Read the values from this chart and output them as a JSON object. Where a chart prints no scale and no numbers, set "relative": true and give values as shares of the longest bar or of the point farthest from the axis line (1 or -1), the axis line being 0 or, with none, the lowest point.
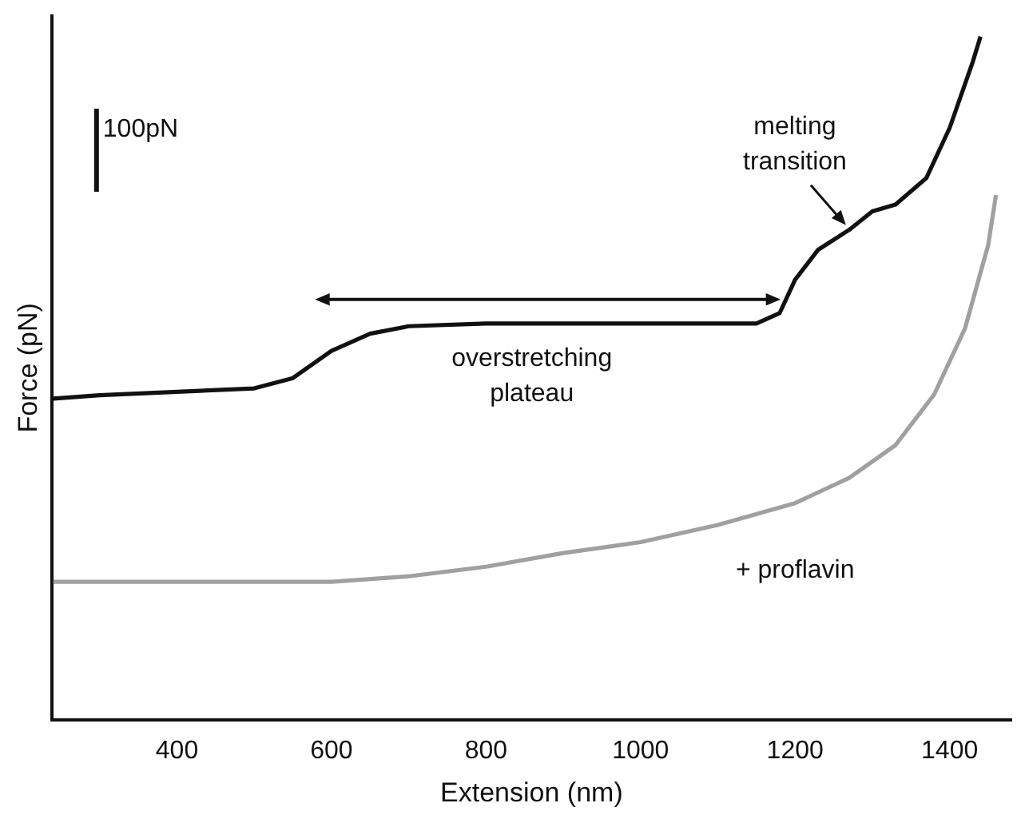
{
  "chart_data": {
    "type": "line",
    "relative": true,
    "xlabel": "Extension (nm)",
    "ylabel": "Force (pN)",
    "xlim": [
      238,
      1480
    ],
    "xticks": [
      400,
      600,
      800,
      1000,
      1200,
      1400
    ],
    "tick_labels": "x",
    "grid": false,
    "legend": false,
    "marker": "none",
    "line_style": "solid",
    "series": [
      {
        "color": "#111111",
        "x": [
          240,
          300,
          400,
          500,
          550,
          600,
          650,
          700,
          800,
          1000,
          1150,
          1180,
          1200,
          1230,
          1270,
          1300,
          1330,
          1370,
          1400,
          1430,
          1440
        ],
        "values": [
          0.47,
          0.475,
          0.48,
          0.485,
          0.5,
          0.54,
          0.565,
          0.576,
          0.58,
          0.58,
          0.58,
          0.595,
          0.644,
          0.688,
          0.717,
          0.744,
          0.754,
          0.793,
          0.866,
          0.963,
          1.0
        ]
      },
      {
        "name": "+ proflavin",
        "color": "#a0a0a0",
        "x": [
          240,
          400,
          600,
          700,
          800,
          900,
          1000,
          1100,
          1200,
          1270,
          1330,
          1380,
          1420,
          1450,
          1460
        ],
        "values": [
          0.202,
          0.202,
          0.202,
          0.21,
          0.224,
          0.244,
          0.26,
          0.285,
          0.317,
          0.354,
          0.402,
          0.476,
          0.573,
          0.695,
          0.768
        ]
      }
    ],
    "annotations": [
      "100pN",
      {
        "text": "overstretching plateau",
        "x": 880,
        "y": 0.58
      },
      {
        "text": "melting transition",
        "x": 1270,
        "y": 0.717
      }
    ]
  }
}
